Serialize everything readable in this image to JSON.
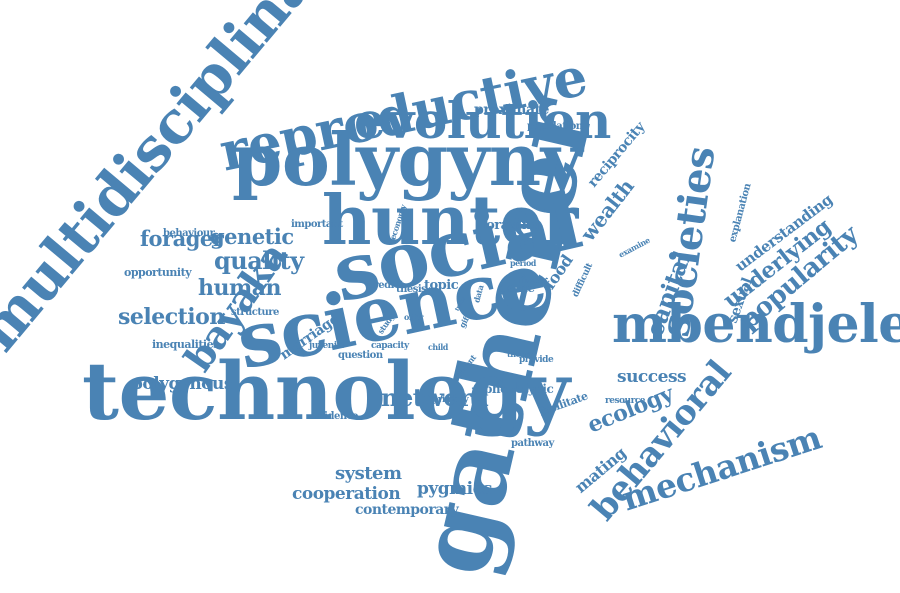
{
  "palette": {
    "word_color": "#4a83b4",
    "background": "#ffffff"
  },
  "words": [
    "multidisciplinary",
    "reproductive",
    "polygyny",
    "evolution",
    "gatherer",
    "hunter",
    "social",
    "science",
    "technology",
    "mbendjele",
    "bayaka",
    "societies",
    "behavioral",
    "mechanism",
    "popularity",
    "underlying",
    "understanding",
    "capital",
    "wealth",
    "ecology",
    "network",
    "selection",
    "quality",
    "human",
    "forager",
    "genetic",
    "polygynous",
    "cooperation",
    "pygmies",
    "contemporary",
    "system",
    "success",
    "mating",
    "phenotypic",
    "reciprocity",
    "proximate",
    "population",
    "foraging",
    "topic",
    "game",
    "food",
    "predict",
    "thesis",
    "marriage",
    "inequalities",
    "opportunity",
    "behaviour",
    "important",
    "structure",
    "juvenile",
    "question",
    "capacity",
    "child",
    "evidence",
    "primary",
    "pathway",
    "facilitate",
    "resource",
    "provide",
    "theory",
    "recent",
    "study",
    "offer",
    "gift",
    "trade",
    "data",
    "fitness",
    "period",
    "difficult",
    "examine",
    "explanation",
    "sexual",
    "economy"
  ]
}
